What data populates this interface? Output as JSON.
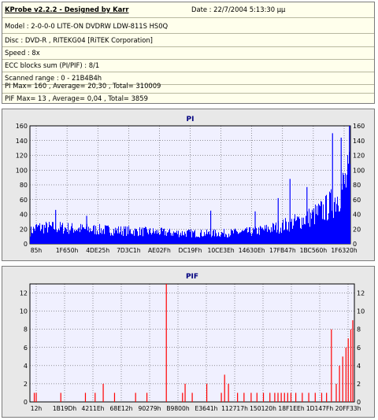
{
  "info": {
    "title": "KProbe v2.2.2 - Designed by Karr",
    "date": "Date : 22/7/2004 5:13:30 μμ",
    "model": "Model : 2-0-0-0 LITE-ON DVDRW LDW-811S   HS0Q",
    "disc": "Disc : DVD-R , RITEKG04 [RiTEK Corporation]",
    "speed": "Speed : 8x",
    "ecc": "ECC blocks sum (PI/PIF) : 8/1",
    "range": "Scanned range : 0 - 21B4B4h",
    "pi_stats": "PI Max= 160 , Average= 20,30 , Total= 310009",
    "pif_stats": "PIF Max= 13 , Average= 0,04 , Total= 3859"
  },
  "colors": {
    "info_bg": "#ffffec",
    "plot_bg": "#f0f0ff",
    "pi_bar": "#0000ff",
    "pif_bar": "#ff0000",
    "grid": "#000000"
  },
  "chart_data": [
    {
      "type": "bar",
      "title": "PI",
      "ylim": [
        0,
        160
      ],
      "yticks": [
        0,
        20,
        40,
        60,
        80,
        100,
        120,
        140,
        160
      ],
      "xtick_labels": [
        "85h",
        "1F650h",
        "4DE25h",
        "7D3C1h",
        "AE02Fh",
        "DC19Fh",
        "10CE3Eh",
        "14630Eh",
        "17FB47h",
        "1BC560h",
        "1F6320h"
      ],
      "profile": {
        "x": [
          0,
          0.02,
          0.08,
          0.15,
          0.25,
          0.35,
          0.45,
          0.55,
          0.63,
          0.7,
          0.77,
          0.83,
          0.88,
          0.92,
          0.95,
          0.98,
          1.0
        ],
        "y": [
          18,
          24,
          24,
          22,
          20,
          18,
          16,
          15,
          16,
          18,
          24,
          32,
          40,
          50,
          62,
          85,
          100
        ]
      },
      "peaks": [
        {
          "x": 0.079,
          "y": 46
        },
        {
          "x": 0.176,
          "y": 38
        },
        {
          "x": 0.564,
          "y": 45
        },
        {
          "x": 0.703,
          "y": 44
        },
        {
          "x": 0.775,
          "y": 62
        },
        {
          "x": 0.812,
          "y": 88
        },
        {
          "x": 0.865,
          "y": 77
        },
        {
          "x": 0.945,
          "y": 150
        },
        {
          "x": 0.972,
          "y": 144
        },
        {
          "x": 0.998,
          "y": 160
        }
      ]
    },
    {
      "type": "bar",
      "title": "PIF",
      "ylim": [
        0,
        13
      ],
      "yticks": [
        0,
        2,
        4,
        6,
        8,
        10,
        12
      ],
      "xtick_labels": [
        "12h",
        "1B19Dh",
        "4211Eh",
        "68E12h",
        "90279h",
        "B9800h",
        "E3641h",
        "112717h",
        "150120h",
        "18F1EEh",
        "1D147Fh",
        "20FF33h"
      ],
      "bars": [
        {
          "x": 0.012,
          "y": 1
        },
        {
          "x": 0.018,
          "y": 1
        },
        {
          "x": 0.094,
          "y": 1
        },
        {
          "x": 0.17,
          "y": 1
        },
        {
          "x": 0.2,
          "y": 1
        },
        {
          "x": 0.225,
          "y": 2
        },
        {
          "x": 0.26,
          "y": 1
        },
        {
          "x": 0.325,
          "y": 1
        },
        {
          "x": 0.36,
          "y": 1
        },
        {
          "x": 0.42,
          "y": 13
        },
        {
          "x": 0.47,
          "y": 1
        },
        {
          "x": 0.478,
          "y": 2
        },
        {
          "x": 0.5,
          "y": 1
        },
        {
          "x": 0.545,
          "y": 2
        },
        {
          "x": 0.59,
          "y": 1
        },
        {
          "x": 0.6,
          "y": 3
        },
        {
          "x": 0.612,
          "y": 2
        },
        {
          "x": 0.64,
          "y": 1
        },
        {
          "x": 0.66,
          "y": 1
        },
        {
          "x": 0.682,
          "y": 1
        },
        {
          "x": 0.7,
          "y": 1
        },
        {
          "x": 0.72,
          "y": 1
        },
        {
          "x": 0.74,
          "y": 1
        },
        {
          "x": 0.755,
          "y": 1
        },
        {
          "x": 0.765,
          "y": 1
        },
        {
          "x": 0.775,
          "y": 1
        },
        {
          "x": 0.785,
          "y": 1
        },
        {
          "x": 0.795,
          "y": 1
        },
        {
          "x": 0.805,
          "y": 1
        },
        {
          "x": 0.82,
          "y": 1
        },
        {
          "x": 0.84,
          "y": 1
        },
        {
          "x": 0.86,
          "y": 1
        },
        {
          "x": 0.88,
          "y": 1
        },
        {
          "x": 0.9,
          "y": 1
        },
        {
          "x": 0.915,
          "y": 1
        },
        {
          "x": 0.93,
          "y": 8
        },
        {
          "x": 0.945,
          "y": 2
        },
        {
          "x": 0.955,
          "y": 4
        },
        {
          "x": 0.965,
          "y": 5
        },
        {
          "x": 0.975,
          "y": 6
        },
        {
          "x": 0.982,
          "y": 7
        },
        {
          "x": 0.99,
          "y": 8
        },
        {
          "x": 0.996,
          "y": 9
        }
      ]
    }
  ]
}
